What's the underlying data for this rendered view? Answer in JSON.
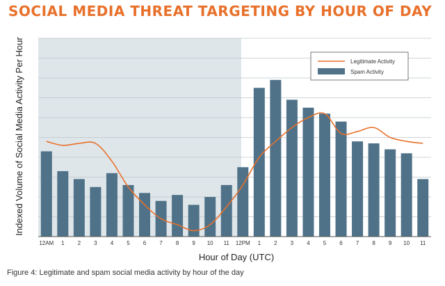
{
  "chart_data": {
    "type": "bar",
    "title": "SOCIAL MEDIA THREAT TARGETING BY HOUR OF DAY",
    "xlabel": "Hour of Day (UTC)",
    "ylabel": "Indexed Volume of Social Media Activity Per Hour",
    "caption": "Figure 4: Legitimate and spam social media activity by hour of the day",
    "categories": [
      "12AM",
      "1",
      "2",
      "3",
      "4",
      "5",
      "6",
      "7",
      "8",
      "9",
      "10",
      "11",
      "12PM",
      "1",
      "2",
      "3",
      "4",
      "5",
      "6",
      "7",
      "8",
      "9",
      "10",
      "11"
    ],
    "ylim": [
      0,
      10
    ],
    "grid": true,
    "shaded_region": "12AM to 11 (nighttime hours)",
    "legend_position": "top-right",
    "series": [
      {
        "name": "Spam Activity",
        "type": "bar",
        "color": "#4f7288",
        "values": [
          4.3,
          3.3,
          2.9,
          2.5,
          3.2,
          2.6,
          2.2,
          1.8,
          2.1,
          1.6,
          2.0,
          2.6,
          3.5,
          7.5,
          7.9,
          6.9,
          6.5,
          6.2,
          5.8,
          4.8,
          4.7,
          4.4,
          4.2,
          2.9
        ]
      },
      {
        "name": "Legitimate Activity",
        "type": "line",
        "color": "#e8702a",
        "values": [
          4.8,
          4.6,
          4.7,
          4.7,
          3.8,
          2.5,
          1.6,
          0.9,
          0.6,
          0.3,
          0.6,
          1.5,
          2.6,
          4.0,
          4.8,
          5.5,
          6.0,
          6.2,
          5.2,
          5.3,
          5.5,
          5.0,
          4.8,
          4.7
        ]
      }
    ]
  },
  "colors": {
    "title": "#e8702a",
    "bar": "#4f7288",
    "line": "#e8702a",
    "shade": "#dfe6ea",
    "grid": "#bcc6cc"
  }
}
